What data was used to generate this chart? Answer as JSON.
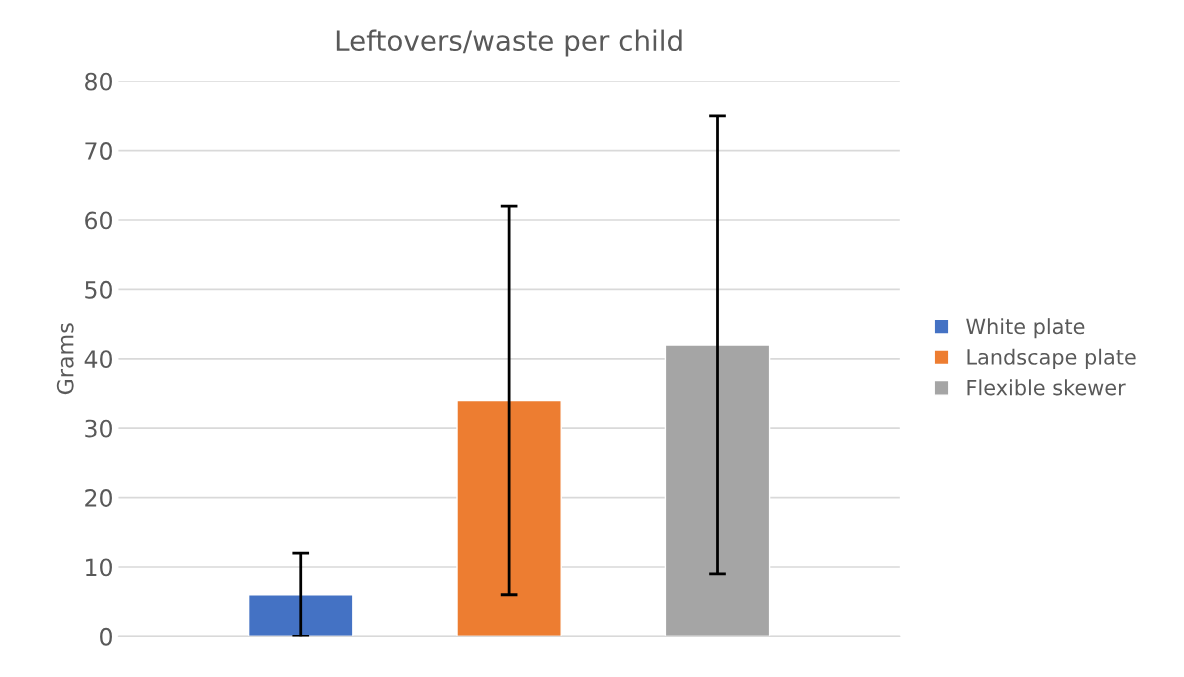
{
  "chart_data": {
    "type": "bar",
    "title": "Leftovers/waste per child",
    "ylabel": "Grams",
    "categories": [
      null
    ],
    "series": [
      {
        "name": "White plate",
        "color": "#4472c4",
        "values": [
          6
        ],
        "errors": [
          [
            0,
            12
          ]
        ]
      },
      {
        "name": "Landscape plate",
        "color": "#ed7d31",
        "values": [
          34
        ],
        "errors": [
          [
            6,
            62
          ]
        ]
      },
      {
        "name": "Flexible skewer",
        "color": "#a5a5a5",
        "values": [
          42
        ],
        "errors": [
          [
            9,
            75
          ]
        ]
      }
    ],
    "ylim": [
      0,
      80
    ],
    "yticks": [
      0,
      10,
      20,
      30,
      40,
      50,
      60,
      70,
      80
    ],
    "grid": "y",
    "legend": "right"
  }
}
